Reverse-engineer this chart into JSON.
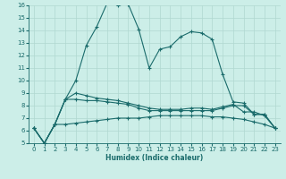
{
  "xlabel": "Humidex (Indice chaleur)",
  "background_color": "#cceee8",
  "line_color": "#1a6b6b",
  "grid_color": "#b0d8d0",
  "xlim": [
    -0.5,
    23.5
  ],
  "ylim": [
    5,
    16
  ],
  "xticks": [
    0,
    1,
    2,
    3,
    4,
    5,
    6,
    7,
    8,
    9,
    10,
    11,
    12,
    13,
    14,
    15,
    16,
    17,
    18,
    19,
    20,
    21,
    22,
    23
  ],
  "yticks": [
    5,
    6,
    7,
    8,
    9,
    10,
    11,
    12,
    13,
    14,
    15,
    16
  ],
  "lines": [
    {
      "x": [
        0,
        1,
        2,
        3,
        4,
        5,
        6,
        7,
        8,
        9,
        10,
        11,
        12,
        13,
        14,
        15,
        16,
        17,
        18,
        19,
        20,
        21,
        22,
        23
      ],
      "y": [
        6.2,
        5.0,
        6.5,
        6.5,
        6.6,
        6.7,
        6.8,
        6.9,
        7.0,
        7.0,
        7.0,
        7.1,
        7.2,
        7.2,
        7.2,
        7.2,
        7.2,
        7.1,
        7.1,
        7.0,
        6.9,
        6.7,
        6.5,
        6.2
      ],
      "style": "solid",
      "marker": true
    },
    {
      "x": [
        0,
        1,
        2,
        3,
        4,
        5,
        6,
        7,
        8,
        9,
        10,
        11,
        12,
        13,
        14,
        15,
        16,
        17,
        18,
        19,
        20,
        21,
        22,
        23
      ],
      "y": [
        6.2,
        5.0,
        6.5,
        8.5,
        8.5,
        8.4,
        8.4,
        8.3,
        8.2,
        8.1,
        7.8,
        7.6,
        7.6,
        7.6,
        7.6,
        7.6,
        7.6,
        7.6,
        7.8,
        8.0,
        8.0,
        7.3,
        7.3,
        6.2
      ],
      "style": "solid",
      "marker": true
    },
    {
      "x": [
        0,
        1,
        2,
        3,
        4,
        5,
        6,
        7,
        8,
        9,
        10,
        11,
        12,
        13,
        14,
        15,
        16,
        17,
        18,
        19,
        20,
        21,
        22,
        23
      ],
      "y": [
        6.2,
        5.0,
        6.5,
        8.5,
        9.0,
        8.8,
        8.6,
        8.5,
        8.4,
        8.2,
        8.0,
        7.8,
        7.7,
        7.7,
        7.7,
        7.8,
        7.8,
        7.7,
        7.9,
        8.1,
        7.5,
        7.5,
        7.2,
        6.2
      ],
      "style": "solid",
      "marker": true
    },
    {
      "x": [
        0,
        1,
        2,
        3,
        4,
        5,
        6,
        7,
        8,
        9,
        10,
        11,
        12,
        13,
        14,
        15,
        16,
        17,
        18,
        19,
        20,
        21,
        22,
        23
      ],
      "y": [
        6.2,
        5.0,
        6.5,
        8.5,
        10.0,
        12.8,
        14.3,
        16.2,
        16.0,
        16.1,
        14.1,
        11.0,
        12.5,
        12.7,
        13.5,
        13.9,
        13.8,
        13.3,
        10.5,
        8.3,
        8.2,
        7.3,
        7.3,
        6.2
      ],
      "style": "solid",
      "marker": true
    }
  ]
}
